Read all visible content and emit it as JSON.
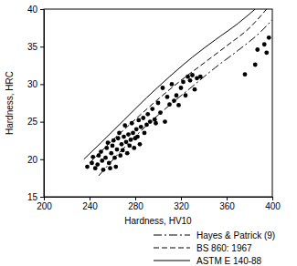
{
  "chart_data": {
    "type": "scatter",
    "x_label": "Hardness, HV10",
    "y_label": "Hardness, HRC",
    "xlim": [
      200,
      400
    ],
    "ylim": [
      15,
      40
    ],
    "xticks": [
      200,
      240,
      280,
      320,
      360,
      400
    ],
    "yticks": [
      15,
      20,
      25,
      30,
      35,
      40
    ],
    "grid": false,
    "legend": "bottom",
    "series": [
      {
        "name": "Hayes & Patrick (9)",
        "type": "line",
        "line_style": "dashdot",
        "color": "#000000",
        "x": [
          248,
          270,
          290,
          310,
          330,
          350,
          370,
          390,
          400
        ],
        "values": [
          17.8,
          21.5,
          24.5,
          27.2,
          29.7,
          32.2,
          34.5,
          37,
          38.6
        ]
      },
      {
        "name": "BS 860: 1967",
        "type": "line",
        "line_style": "dashed",
        "color": "#000000",
        "x": [
          240,
          260,
          280,
          300,
          320,
          340,
          360,
          380,
          395
        ],
        "values": [
          19.5,
          22.5,
          25.3,
          28,
          30.5,
          32.8,
          35.1,
          37.5,
          40
        ]
      },
      {
        "name": "ASTM E 140-88",
        "type": "line",
        "line_style": "solid",
        "color": "#000000",
        "x": [
          235,
          250,
          270,
          290,
          310,
          330,
          350,
          370,
          385
        ],
        "values": [
          20,
          22.2,
          25.2,
          28.2,
          31,
          33.6,
          35.9,
          38.1,
          40
        ]
      },
      {
        "type": "scatter",
        "marker": "circle",
        "color": "#000000",
        "x": [
          238,
          242,
          243,
          245,
          247,
          248,
          250,
          251,
          252,
          254,
          255,
          256,
          257,
          258,
          259,
          260,
          261,
          262,
          263,
          264,
          265,
          266,
          267,
          268,
          269,
          270,
          271,
          272,
          273,
          274,
          275,
          276,
          277,
          278,
          279,
          280,
          281,
          282,
          283,
          284,
          285,
          287,
          288,
          290,
          291,
          293,
          295,
          297,
          298,
          300,
          302,
          304,
          306,
          308,
          310,
          312,
          314,
          316,
          318,
          320,
          322,
          324,
          326,
          328,
          330,
          332,
          334,
          337,
          376,
          385,
          387,
          393,
          395,
          397
        ],
        "values": [
          19,
          19.5,
          20.3,
          18.8,
          19.3,
          20.5,
          21,
          19.8,
          18.6,
          20.2,
          21.5,
          22.2,
          19.5,
          18.8,
          20.8,
          21.8,
          22.5,
          20.2,
          19,
          21.3,
          22.8,
          23.5,
          20.5,
          22,
          21.2,
          23,
          24.5,
          22.3,
          20.8,
          23.3,
          21.8,
          22.6,
          24.8,
          23.5,
          21.5,
          22.8,
          24,
          23,
          25.2,
          22,
          24.3,
          25.5,
          23.5,
          24.6,
          26,
          25,
          26.7,
          25.3,
          24.8,
          27.5,
          26.2,
          29.5,
          25,
          28.3,
          27.3,
          30,
          27.8,
          28.5,
          27.2,
          29.5,
          30.3,
          28.5,
          31,
          30.5,
          31.2,
          29.3,
          30.8,
          31,
          31.3,
          32.6,
          34.6,
          35.3,
          34.2,
          36.2
        ]
      }
    ]
  }
}
